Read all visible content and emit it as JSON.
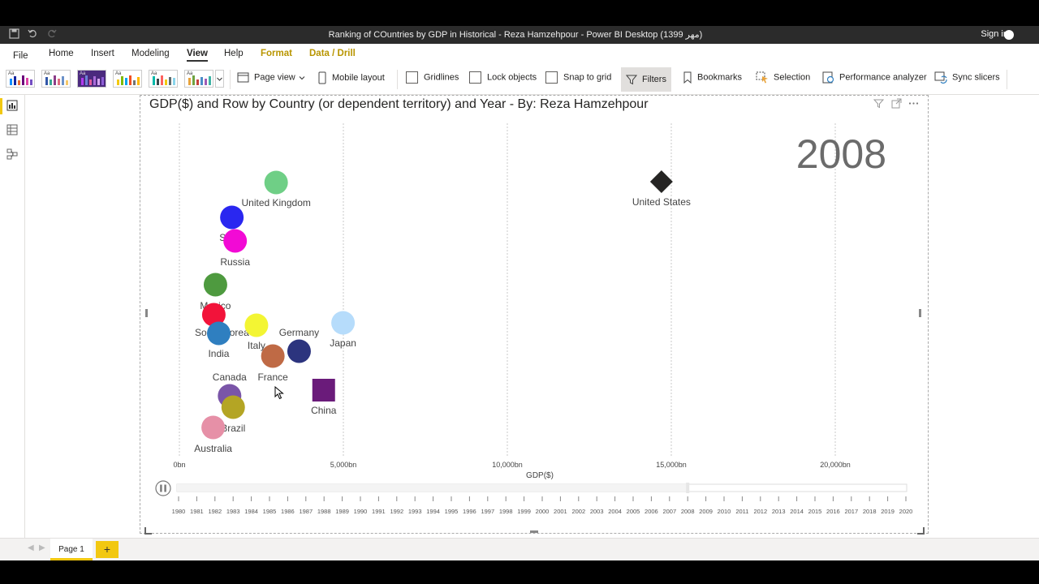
{
  "window": {
    "title": "Ranking of COuntries by GDP in Historical - Reza Hamzehpour - Power BI Desktop (1399 مهر)",
    "sign_in": "Sign in"
  },
  "menu": {
    "file": "File",
    "home": "Home",
    "insert": "Insert",
    "modeling": "Modeling",
    "view": "View",
    "help": "Help",
    "format": "Format",
    "data_drill": "Data / Drill"
  },
  "ribbon": {
    "page_view": "Page view",
    "mobile_layout": "Mobile layout",
    "gridlines": "Gridlines",
    "lock_objects": "Lock objects",
    "snap_to_grid": "Snap to grid",
    "filters": "Filters",
    "bookmarks": "Bookmarks",
    "selection": "Selection",
    "performance_analyzer": "Performance analyzer",
    "sync_slicers": "Sync slicers",
    "theme_label": "Aa"
  },
  "visual": {
    "title": "GDP($) and Row by Country (or dependent territory) and Year - By: Reza Hamzehpour",
    "year_watermark": "2008"
  },
  "chart_data": {
    "type": "scatter",
    "title": "GDP($) and Row by Country (or dependent territory) and Year - By: Reza Hamzehpour",
    "xlabel": "GDP($)",
    "ylabel": "",
    "x_ticks": [
      "0bn",
      "5,000bn",
      "10,000bn",
      "15,000bn",
      "20,000bn"
    ],
    "xlim": [
      0,
      22000
    ],
    "grid": "vertical dotted",
    "play_axis_years": [
      "1980",
      "1981",
      "1982",
      "1983",
      "1984",
      "1985",
      "1986",
      "1987",
      "1988",
      "1989",
      "1990",
      "1991",
      "1992",
      "1993",
      "1994",
      "1995",
      "1996",
      "1997",
      "1998",
      "1999",
      "2000",
      "2001",
      "2002",
      "2003",
      "2004",
      "2005",
      "2006",
      "2007",
      "2008",
      "2009",
      "2010",
      "2011",
      "2012",
      "2013",
      "2014",
      "2015",
      "2016",
      "2017",
      "2018",
      "2019",
      "2020"
    ],
    "current_year": "2008",
    "points": [
      {
        "label": "United States",
        "x": 14700,
        "color": "#252423",
        "shape": "diamond"
      },
      {
        "label": "United Kingdom",
        "x": 2950,
        "color": "#6fcf86",
        "shape": "circle"
      },
      {
        "label": "Spain",
        "x": 1600,
        "color": "#2a27f0",
        "shape": "circle"
      },
      {
        "label": "Russia",
        "x": 1700,
        "color": "#f20ad5",
        "shape": "circle"
      },
      {
        "label": "Mexico",
        "x": 1100,
        "color": "#4e9a3f",
        "shape": "circle"
      },
      {
        "label": "South Korea",
        "x": 1050,
        "color": "#f2133a",
        "shape": "circle"
      },
      {
        "label": "India",
        "x": 1200,
        "color": "#2f7fc0",
        "shape": "circle"
      },
      {
        "label": "Italy",
        "x": 2350,
        "color": "#f3f533",
        "shape": "circle"
      },
      {
        "label": "Germany",
        "x": 3650,
        "color": "#2c347e",
        "shape": "circle"
      },
      {
        "label": "Japan",
        "x": 4990,
        "color": "#b6dcfb",
        "shape": "circle"
      },
      {
        "label": "France",
        "x": 2850,
        "color": "#bf6a45",
        "shape": "circle"
      },
      {
        "label": "China",
        "x": 4400,
        "color": "#6a1b7a",
        "shape": "square"
      },
      {
        "label": "Canada",
        "x": 1530,
        "color": "#7a55a8",
        "shape": "circle"
      },
      {
        "label": "Brazil",
        "x": 1640,
        "color": "#b4a524",
        "shape": "circle"
      },
      {
        "label": "Australia",
        "x": 1030,
        "color": "#e690a7",
        "shape": "circle"
      }
    ]
  },
  "pages": {
    "page1": "Page 1",
    "add": "+"
  }
}
